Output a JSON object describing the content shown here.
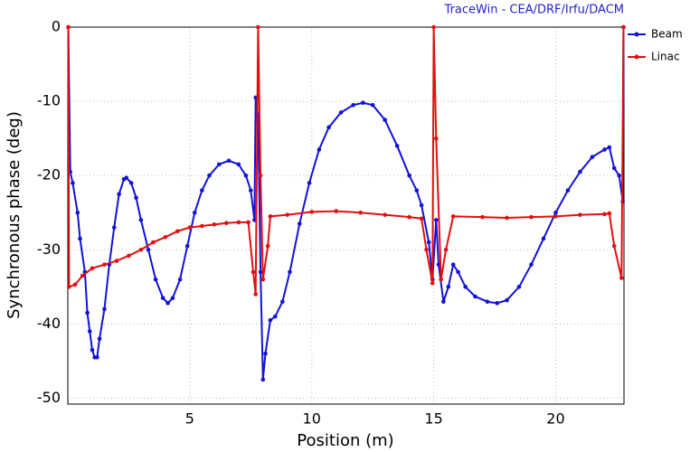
{
  "chart_data": {
    "type": "line",
    "title": "TraceWin - CEA/DRF/Irfu/DACM",
    "xlabel": "Position (m)",
    "ylabel": "Synchronous phase (deg)",
    "xlim": [
      0,
      22.8
    ],
    "ylim": [
      -50.8,
      0
    ],
    "xticks": [
      5,
      10,
      15,
      20
    ],
    "yticks": [
      0,
      -10,
      -20,
      -30,
      -40,
      -50
    ],
    "grid": true,
    "legend": "right",
    "series": [
      {
        "name": "Beam",
        "color": "#1212d8",
        "x": [
          0.02,
          0.1,
          0.2,
          0.4,
          0.5,
          0.7,
          0.8,
          0.9,
          1.0,
          1.1,
          1.2,
          1.3,
          1.5,
          1.7,
          1.9,
          2.1,
          2.3,
          2.4,
          2.6,
          2.8,
          3.0,
          3.3,
          3.6,
          3.9,
          4.1,
          4.3,
          4.6,
          4.9,
          5.2,
          5.5,
          5.8,
          6.2,
          6.6,
          7.0,
          7.3,
          7.5,
          7.65,
          7.7,
          7.8,
          7.9,
          8.0,
          8.1,
          8.3,
          8.5,
          8.8,
          9.1,
          9.5,
          9.9,
          10.3,
          10.7,
          11.2,
          11.7,
          12.1,
          12.5,
          13.0,
          13.5,
          14.0,
          14.3,
          14.5,
          14.8,
          14.95,
          15.1,
          15.2,
          15.4,
          15.6,
          15.8,
          16.0,
          16.3,
          16.7,
          17.2,
          17.6,
          18.0,
          18.5,
          19.0,
          19.5,
          20.0,
          20.5,
          21.0,
          21.5,
          22.0,
          22.2,
          22.4,
          22.6,
          22.75,
          22.78
        ],
        "values": [
          0,
          -19.5,
          -21,
          -25,
          -28.5,
          -33,
          -38.5,
          -41,
          -43.5,
          -44.5,
          -44.5,
          -42,
          -38,
          -32,
          -27,
          -22.5,
          -20.5,
          -20.3,
          -21,
          -23,
          -26,
          -30,
          -34,
          -36.5,
          -37.2,
          -36.5,
          -34,
          -29.5,
          -25,
          -22,
          -20,
          -18.5,
          -18,
          -18.5,
          -20,
          -22,
          -26,
          -9.5,
          -12,
          -33,
          -47.5,
          -44,
          -39.5,
          -39,
          -37,
          -33,
          -26.5,
          -21,
          -16.5,
          -13.5,
          -11.5,
          -10.5,
          -10.2,
          -10.5,
          -12.5,
          -16,
          -20,
          -22,
          -24,
          -29,
          -34,
          -26,
          -32,
          -37,
          -35,
          -32,
          -33,
          -35,
          -36.3,
          -37,
          -37.2,
          -36.8,
          -35,
          -32,
          -28.5,
          -25,
          -22,
          -19.5,
          -17.5,
          -16.5,
          -16.2,
          -19,
          -20,
          -23.5,
          0
        ]
      },
      {
        "name": "Linac",
        "color": "#e01010",
        "x": [
          0.02,
          0.05,
          0.3,
          0.6,
          1.0,
          1.5,
          2.0,
          2.5,
          3.0,
          3.5,
          4.0,
          4.5,
          5.0,
          5.5,
          6.0,
          6.5,
          7.0,
          7.4,
          7.6,
          7.7,
          7.8,
          7.9,
          8.0,
          8.2,
          8.3,
          9.0,
          10.0,
          11.0,
          12.0,
          13.0,
          14.0,
          14.5,
          14.7,
          14.95,
          15.0,
          15.1,
          15.3,
          15.5,
          15.8,
          17.0,
          18.0,
          19.0,
          20.0,
          21.0,
          22.0,
          22.2,
          22.4,
          22.7,
          22.78
        ],
        "values": [
          0,
          -35,
          -34.7,
          -33.5,
          -32.5,
          -32,
          -31.5,
          -30.8,
          -30,
          -29,
          -28.3,
          -27.5,
          -27,
          -26.8,
          -26.6,
          -26.4,
          -26.3,
          -26.3,
          -33,
          -36,
          0,
          -20,
          -34,
          -29.5,
          -25.5,
          -25.3,
          -24.9,
          -24.8,
          -25,
          -25.3,
          -25.6,
          -25.8,
          -30,
          -34.5,
          0,
          -15,
          -34,
          -30,
          -25.5,
          -25.6,
          -25.7,
          -25.6,
          -25.5,
          -25.3,
          -25.2,
          -25.1,
          -29.5,
          -33.8,
          0
        ]
      }
    ]
  }
}
